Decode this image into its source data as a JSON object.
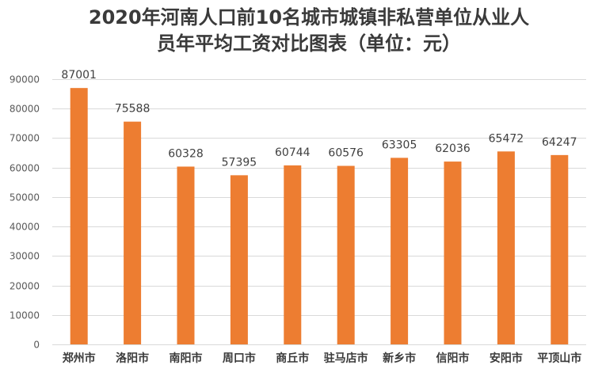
{
  "chart_data": {
    "type": "bar",
    "title_line1": "2020年河南人口前10名城市城镇非私营单位从业人",
    "title_line2": "员年平均工资对比图表（单位：元）",
    "categories": [
      "郑州市",
      "洛阳市",
      "南阳市",
      "周口市",
      "商丘市",
      "驻马店市",
      "新乡市",
      "信阳市",
      "安阳市",
      "平顶山市"
    ],
    "values": [
      87001,
      75588,
      60328,
      57395,
      60744,
      60576,
      63305,
      62036,
      65472,
      64247
    ],
    "value_labels": [
      "87001",
      "75588",
      "60328",
      "57395",
      "60744",
      "60576",
      "63305",
      "62036",
      "65472",
      "64247"
    ],
    "y_ticks": [
      0,
      10000,
      20000,
      30000,
      40000,
      50000,
      60000,
      70000,
      80000,
      90000
    ],
    "y_tick_labels": [
      "0",
      "10000",
      "20000",
      "30000",
      "40000",
      "50000",
      "60000",
      "70000",
      "80000",
      "90000"
    ],
    "ylim": [
      0,
      90000
    ],
    "grid": true,
    "legend": "none",
    "bar_color": "#ED7D31",
    "grid_color": "#D9D9D9",
    "xlabel": "",
    "ylabel": ""
  }
}
